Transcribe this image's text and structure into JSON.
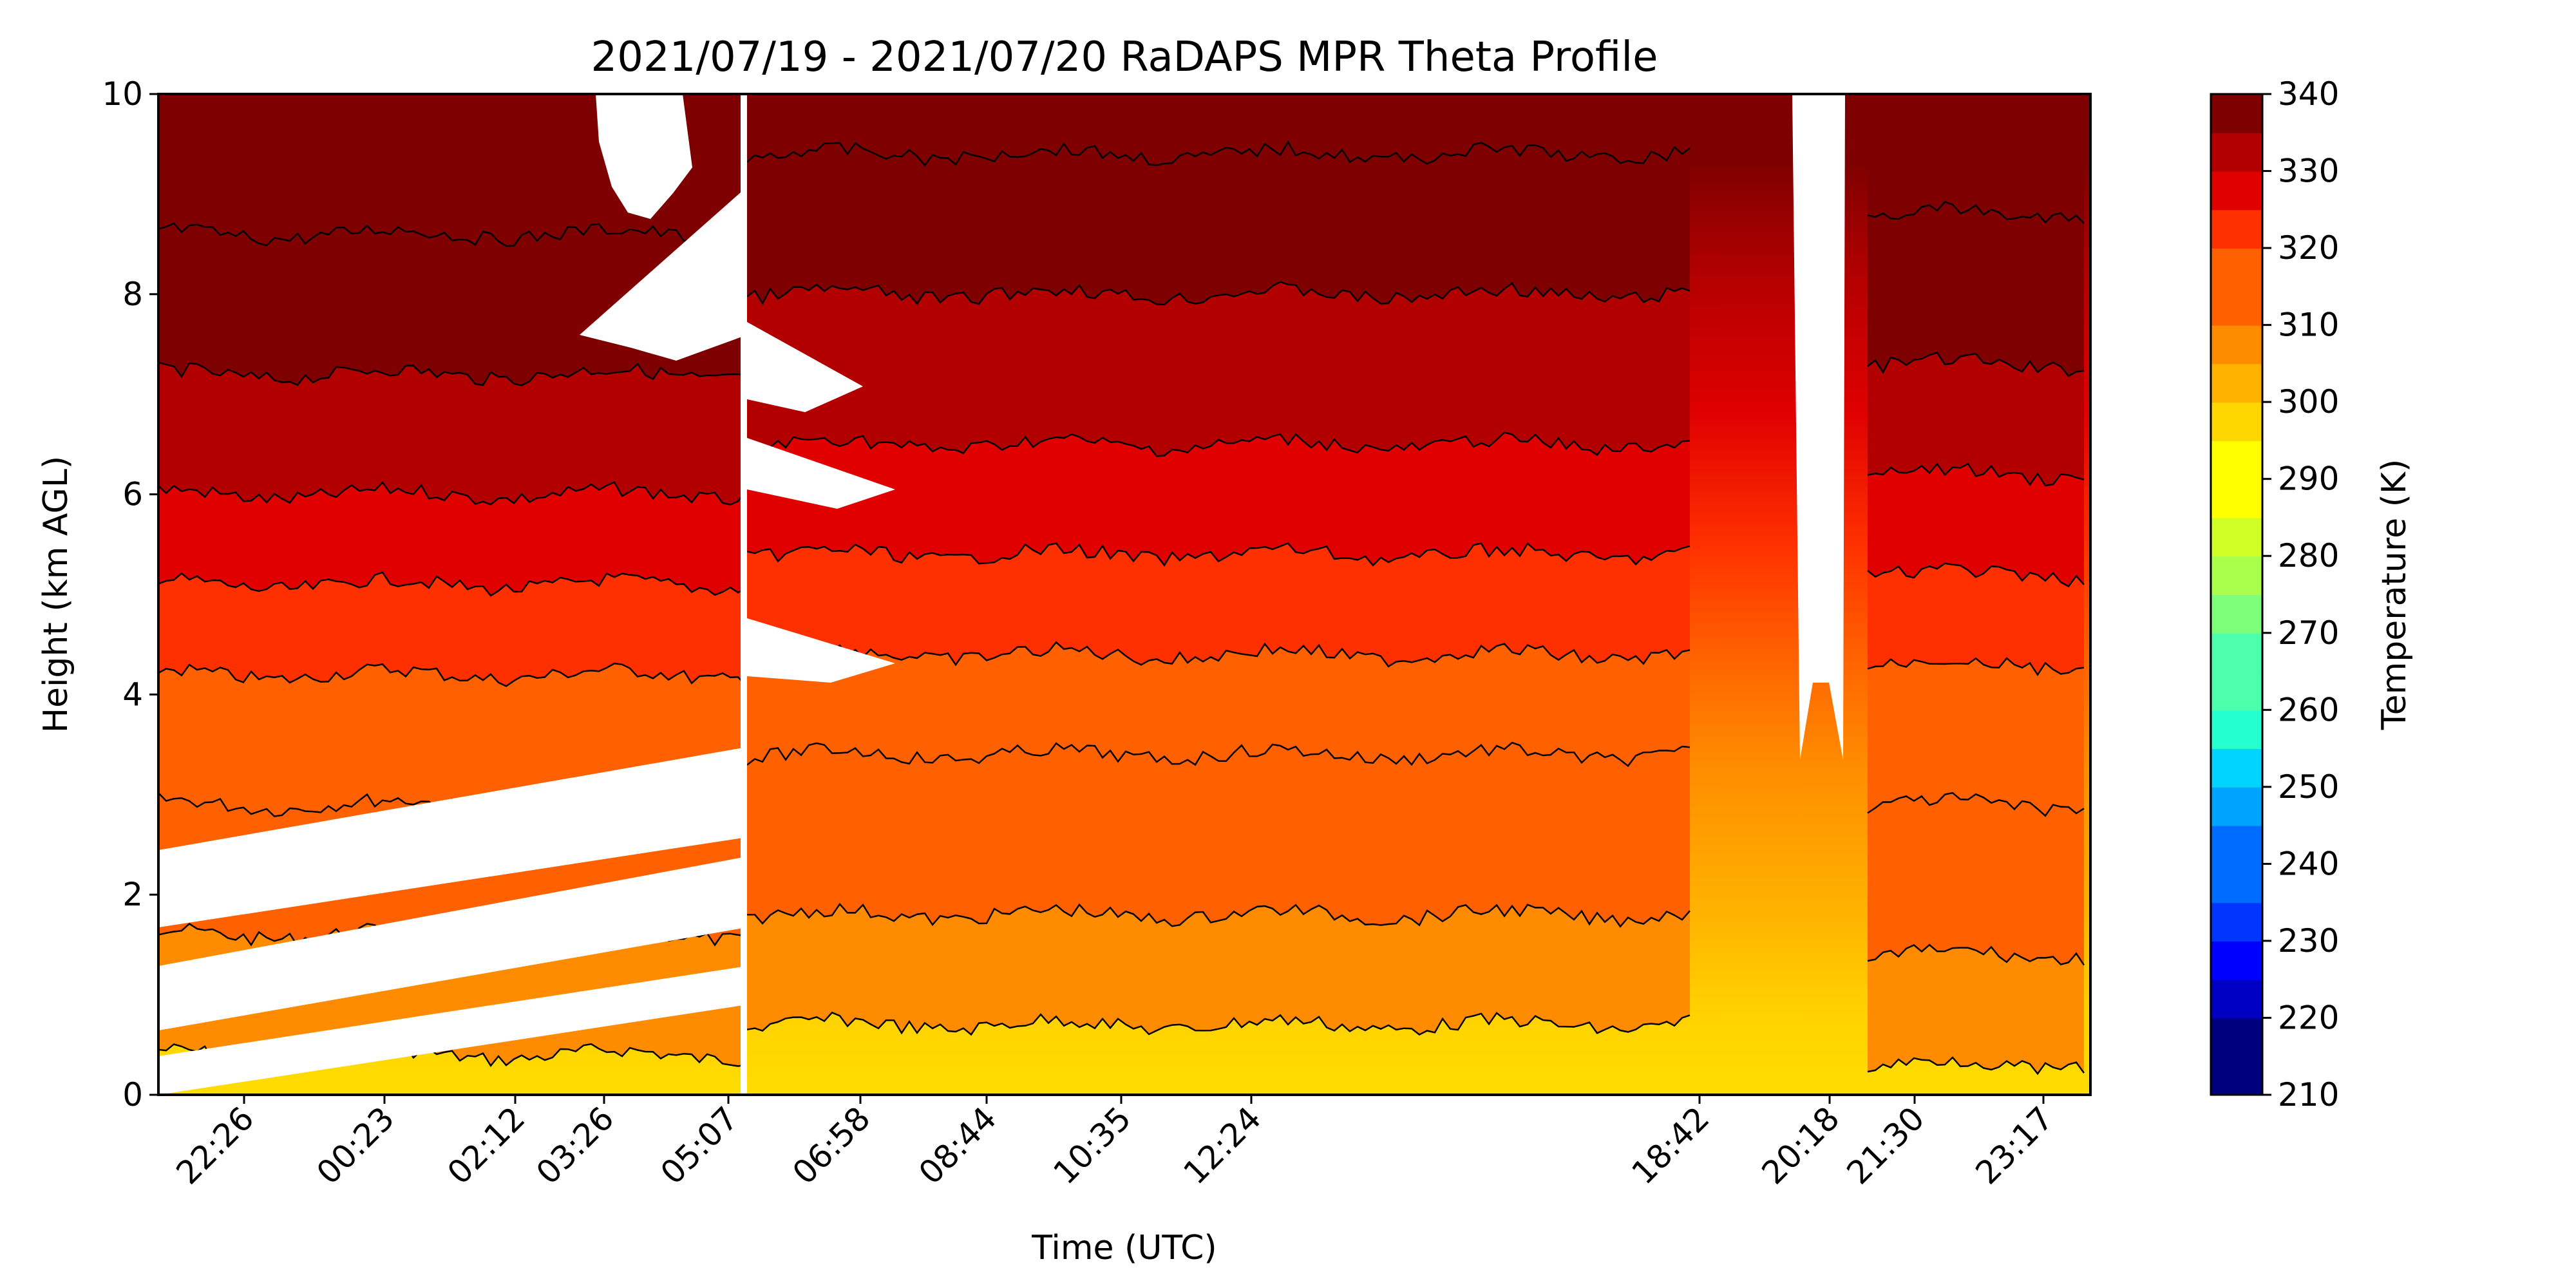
{
  "chart_data": {
    "type": "heatmap",
    "title": "2021/07/19 - 2021/07/20 RaDAPS MPR Theta Profile",
    "xlabel": "Time (UTC)",
    "ylabel": "Height (km AGL)",
    "ylim": [
      0,
      10
    ],
    "y_ticks": [
      "0",
      "2",
      "4",
      "6",
      "8",
      "10"
    ],
    "x_ticks": [
      "22:26",
      "00:23",
      "02:12",
      "03:26",
      "05:07",
      "06:58",
      "08:44",
      "10:35",
      "12:24",
      "18:42",
      "20:18",
      "21:30",
      "23:17"
    ],
    "colorbar": {
      "label": "Temperature (K)",
      "range": [
        210,
        340
      ],
      "step": 5,
      "ticks": [
        "210",
        "220",
        "230",
        "240",
        "250",
        "260",
        "270",
        "280",
        "290",
        "300",
        "310",
        "320",
        "330",
        "340"
      ],
      "colors": [
        "#00007f",
        "#0000c4",
        "#0000ff",
        "#0036ff",
        "#006cff",
        "#00a4ff",
        "#00d4ff",
        "#26ffd0",
        "#4dffaa",
        "#7dff7a",
        "#aaff4d",
        "#d0ff26",
        "#ffff00",
        "#ffd700",
        "#ffb300",
        "#ff8c00",
        "#ff6100",
        "#ff3000",
        "#e00000",
        "#b20000",
        "#7f0000"
      ]
    },
    "contour_levels_K": [
      300,
      305,
      310,
      315,
      320,
      325,
      330,
      335
    ],
    "contour_heights_km_typical": {
      "night_segment": [
        0.4,
        1.6,
        2.9,
        4.2,
        5.1,
        6.0,
        7.2,
        8.6
      ],
      "day_segment": [
        0.7,
        1.8,
        3.4,
        4.4,
        5.4,
        6.5,
        8.0,
        9.4
      ],
      "late_segment": [
        0.3,
        1.4,
        2.9,
        4.3,
        5.2,
        6.2,
        7.3,
        8.8
      ]
    },
    "grid": false
  }
}
